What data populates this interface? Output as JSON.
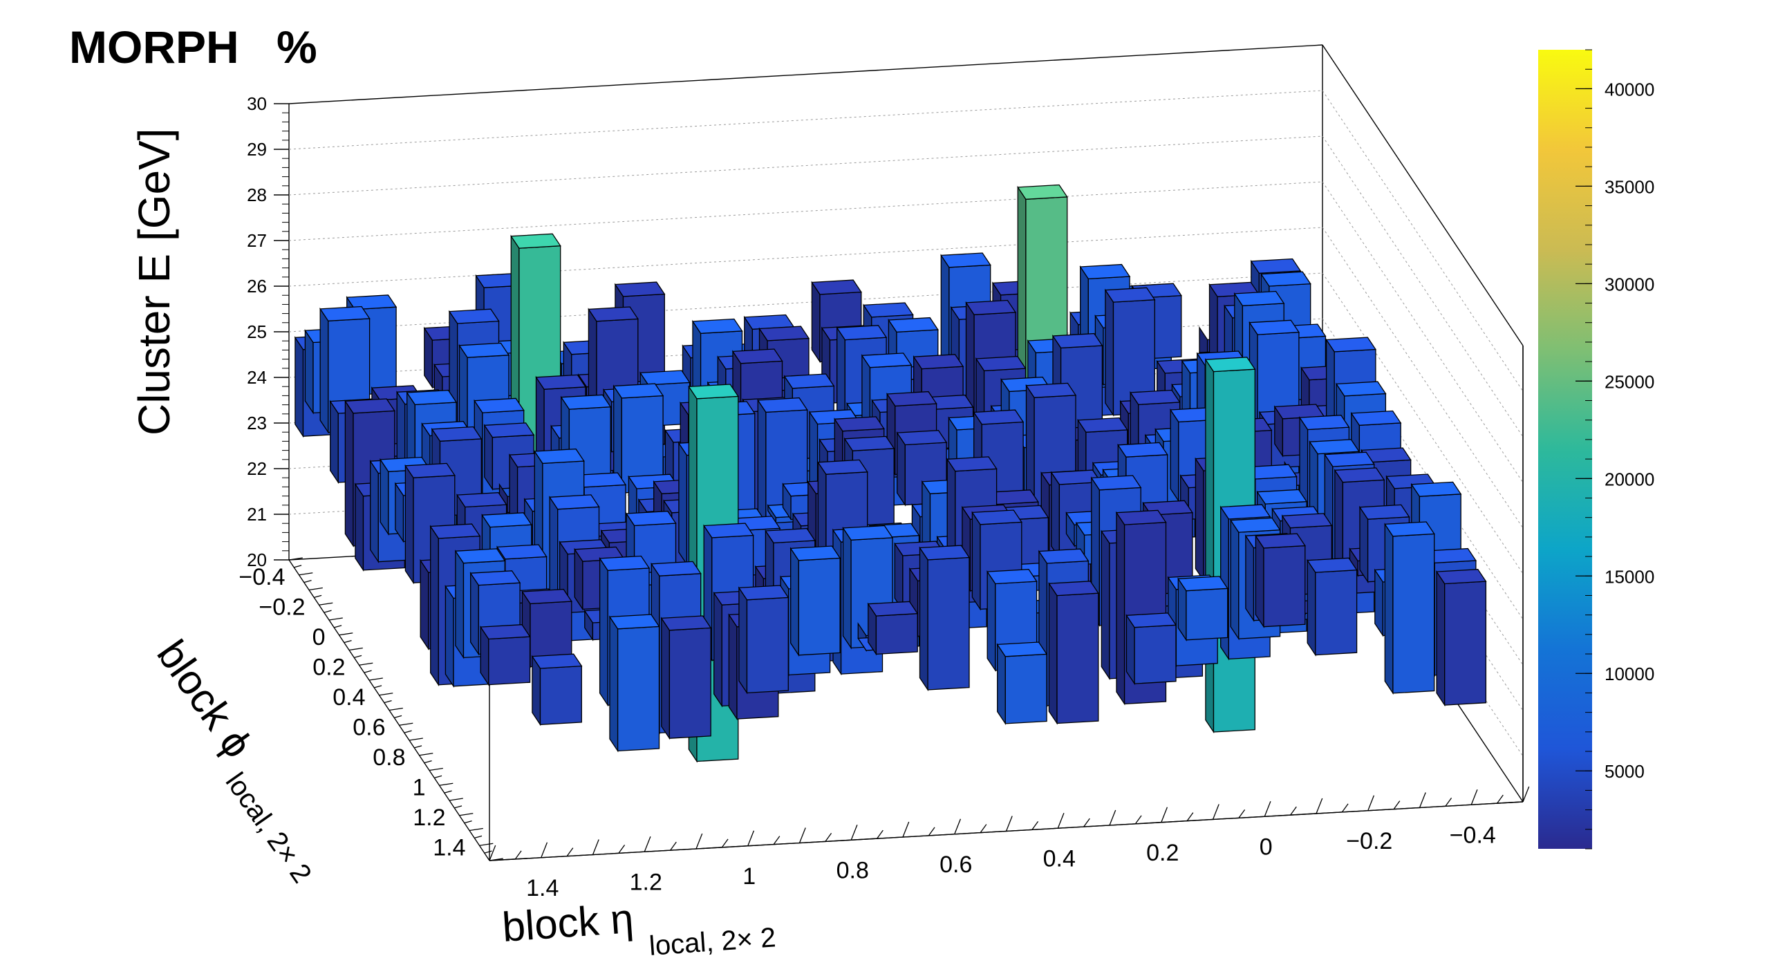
{
  "header": {
    "label": "MORPH",
    "percent_text": "%"
  },
  "chart_data": {
    "type": "lego3d",
    "zlabel": "Cluster E  [GeV]",
    "xlabel": "block η",
    "xlabel_sub": "local, 2× 2",
    "ylabel": "block ϕ",
    "ylabel_sub": "local, 2× 2",
    "zlim": [
      20,
      30
    ],
    "z_ticks": [
      20,
      21,
      22,
      23,
      24,
      25,
      26,
      27,
      28,
      29,
      30
    ],
    "x_ticks": [
      "1.4",
      "1.2",
      "1",
      "0.8",
      "0.6",
      "0.4",
      "0.2",
      "0",
      "−0.2",
      "−0.4"
    ],
    "y_ticks": [
      "−0.4",
      "−0.2",
      "0",
      "0.2",
      "0.4",
      "0.6",
      "0.8",
      "1",
      "1.2",
      "1.4"
    ],
    "color_scale": {
      "min": 1000,
      "max": 42000,
      "ticks": [
        5000,
        10000,
        15000,
        20000,
        25000,
        30000,
        35000,
        40000
      ],
      "tick_labels": [
        "5000",
        "10000",
        "15000",
        "20000",
        "25000",
        "30000",
        "35000",
        "40000"
      ],
      "colors": [
        "#2a2a8f",
        "#1f56d8",
        "#1474d6",
        "#0da5c8",
        "#2eb99b",
        "#7fbf73",
        "#cbbb53",
        "#f2c73a",
        "#f9fa10"
      ]
    },
    "x_centers": [
      1.45,
      1.35,
      1.2,
      1.1,
      0.95,
      0.85,
      0.7,
      0.6,
      0.45,
      0.35,
      0.2,
      0.1,
      -0.05,
      -0.15,
      -0.3,
      -0.4
    ],
    "y_centers": [
      -0.45,
      -0.35,
      -0.2,
      -0.1,
      0.05,
      0.15,
      0.3,
      0.4,
      0.55,
      0.65,
      0.8,
      0.9,
      1.05,
      1.15,
      1.3,
      1.4
    ],
    "hot_cells": [
      {
        "eta": 1.1,
        "phi": -0.1,
        "count": 22000
      },
      {
        "eta": 0.1,
        "phi": -0.2,
        "count": 24000
      },
      {
        "eta": 0.95,
        "phi": 0.9,
        "count": 20000
      },
      {
        "eta": -0.05,
        "phi": 0.9,
        "count": 19000
      }
    ]
  }
}
